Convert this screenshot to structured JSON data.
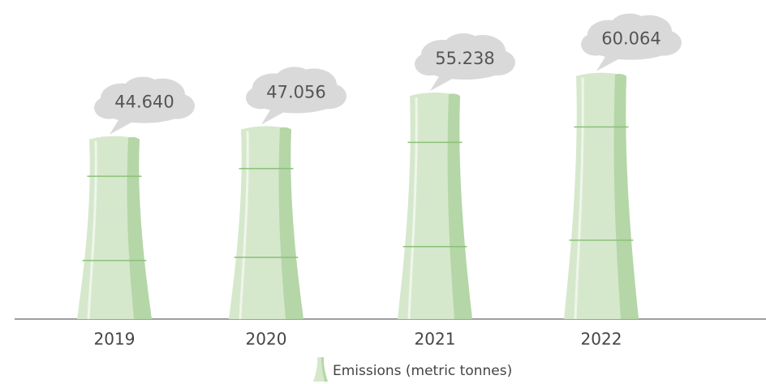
{
  "chart_data": {
    "type": "bar",
    "categories": [
      "2019",
      "2020",
      "2021",
      "2022"
    ],
    "series": [
      {
        "name": "Emissions (metric tonnes)",
        "color": "#d5e8cc",
        "values": [
          44.64,
          47.056,
          55.238,
          60.064
        ],
        "value_labels": [
          "44.640",
          "47.056",
          "55.238",
          "60.064"
        ]
      }
    ]
  }
}
